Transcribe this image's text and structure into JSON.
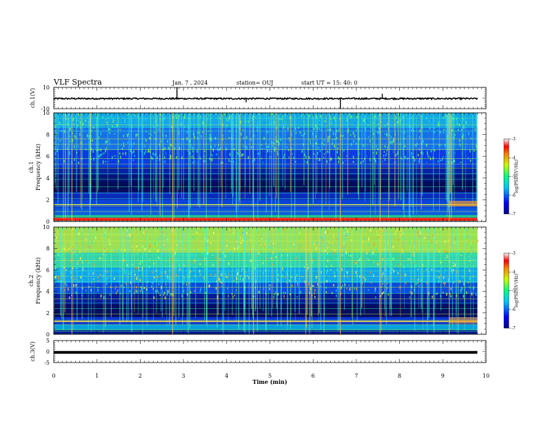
{
  "header": {
    "title": "VLF Spectra",
    "date": "Jan. 7 , 2024",
    "station": "station= OUJ",
    "start": "start UT = 15: 40: 0"
  },
  "chart_data": [
    {
      "type": "line",
      "ylabel": "ch.1(V)",
      "ylim": [
        -10,
        10
      ],
      "yticks": [
        "10",
        "-10"
      ],
      "x": [
        0,
        0.5,
        1,
        1.5,
        2,
        2.5,
        2.85,
        3,
        3.5,
        4,
        4.5,
        5,
        5.5,
        6,
        6.6,
        7,
        7.6,
        8,
        8.5,
        9,
        9.5,
        9.8
      ],
      "values": [
        -0.5,
        -0.6,
        -0.5,
        -0.6,
        -0.5,
        -0.6,
        -0.5,
        -0.5,
        -0.6,
        -0.6,
        -0.6,
        -0.6,
        -0.6,
        -0.6,
        -0.6,
        -0.6,
        -0.6,
        -0.6,
        -0.6,
        -0.6,
        -0.6,
        -0.6
      ],
      "spikes": [
        {
          "x": 2.85,
          "y": 10
        },
        {
          "x": 4.45,
          "y": -4
        },
        {
          "x": 6.63,
          "y": -10
        },
        {
          "x": 7.6,
          "y": 4
        }
      ]
    },
    {
      "type": "heatmap",
      "ylabel": "ch.1",
      "ylabel2": "Frequency (kHz)",
      "ylim": [
        0,
        10
      ],
      "yticks": [
        "0",
        "2",
        "4",
        "6",
        "8",
        "10"
      ],
      "colorbar": {
        "label": "log(PSD)(V²/Hz)",
        "range": [
          -7,
          -3
        ],
        "ticks": [
          "-3",
          "-4",
          "-5",
          "-6",
          "-7"
        ]
      }
    },
    {
      "type": "heatmap",
      "ylabel": "ch.2",
      "ylabel2": "Frequency (kHz)",
      "ylim": [
        0,
        10
      ],
      "yticks": [
        "0",
        "2",
        "4",
        "6",
        "8",
        "10"
      ],
      "colorbar": {
        "label": "log(PSD)(V²/Hz)",
        "range": [
          -7,
          -3
        ],
        "ticks": [
          "-3",
          "-4",
          "-5",
          "-6",
          "-7"
        ]
      }
    },
    {
      "type": "line",
      "ylabel": "ch.3(V)",
      "ylim": [
        -5,
        5
      ],
      "yticks": [
        "5",
        "0",
        "-5"
      ],
      "x": [
        0,
        9.8
      ],
      "values": [
        -0.4,
        -0.4
      ]
    }
  ],
  "xaxis": {
    "label": "Time (min)",
    "xlim": [
      0,
      10
    ],
    "ticks": [
      "0",
      "1",
      "2",
      "3",
      "4",
      "5",
      "6",
      "7",
      "8",
      "9",
      "10"
    ]
  }
}
